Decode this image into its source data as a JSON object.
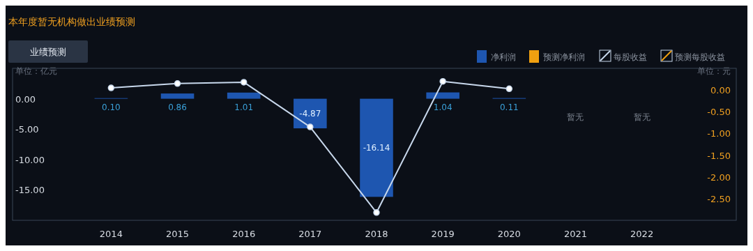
{
  "chart_data": {
    "type": "bar",
    "title": "本年度暂无机构做出业绩预测",
    "subtitle": "业绩预测",
    "ylabel": "单位：亿元",
    "y2label": "单位：元",
    "categories": [
      "2014",
      "2015",
      "2016",
      "2017",
      "2018",
      "2019",
      "2020",
      "2021",
      "2022"
    ],
    "series": [
      {
        "name": "净利润",
        "color": "#1e56b0",
        "values": [
          0.1,
          0.86,
          1.01,
          -4.87,
          -16.14,
          1.04,
          0.11,
          null,
          null
        ],
        "value_labels": [
          "0.10",
          "0.86",
          "1.01",
          "-4.87",
          "-16.14",
          "1.04",
          "0.11",
          null,
          null
        ]
      },
      {
        "name": "预测净利润",
        "color": "#f0a010",
        "values": [
          null,
          null,
          null,
          null,
          null,
          null,
          null,
          null,
          null
        ]
      },
      {
        "name": "每股收益",
        "type": "line",
        "axis": "y2",
        "color": "#c8d8ec",
        "values": [
          0.05,
          0.15,
          0.18,
          -0.85,
          -2.82,
          0.2,
          0.03,
          null,
          null
        ]
      },
      {
        "name": "预测每股收益",
        "type": "line",
        "axis": "y2",
        "color": "#f0a010",
        "values": [
          null,
          null,
          null,
          null,
          null,
          null,
          null,
          null,
          null
        ]
      }
    ],
    "ylim": [
      -20,
      5
    ],
    "yticks": [
      {
        "value": -15,
        "label": "-15.00"
      },
      {
        "value": -10,
        "label": "-10.00"
      },
      {
        "value": -5,
        "label": "-5.00"
      },
      {
        "value": 0,
        "label": "0.00"
      }
    ],
    "y2lim": [
      -3,
      0.5
    ],
    "y2ticks": [
      {
        "value": -2.5,
        "label": "-2.50"
      },
      {
        "value": -2,
        "label": "-2.00"
      },
      {
        "value": -1.5,
        "label": "-1.50"
      },
      {
        "value": -1,
        "label": "-1.00"
      },
      {
        "value": -0.5,
        "label": "-0.50"
      },
      {
        "value": 0,
        "label": "0.00"
      }
    ],
    "annotations": [
      "暂无",
      "暂无"
    ],
    "legend": "top right",
    "marker": "circle",
    "grid": false
  }
}
